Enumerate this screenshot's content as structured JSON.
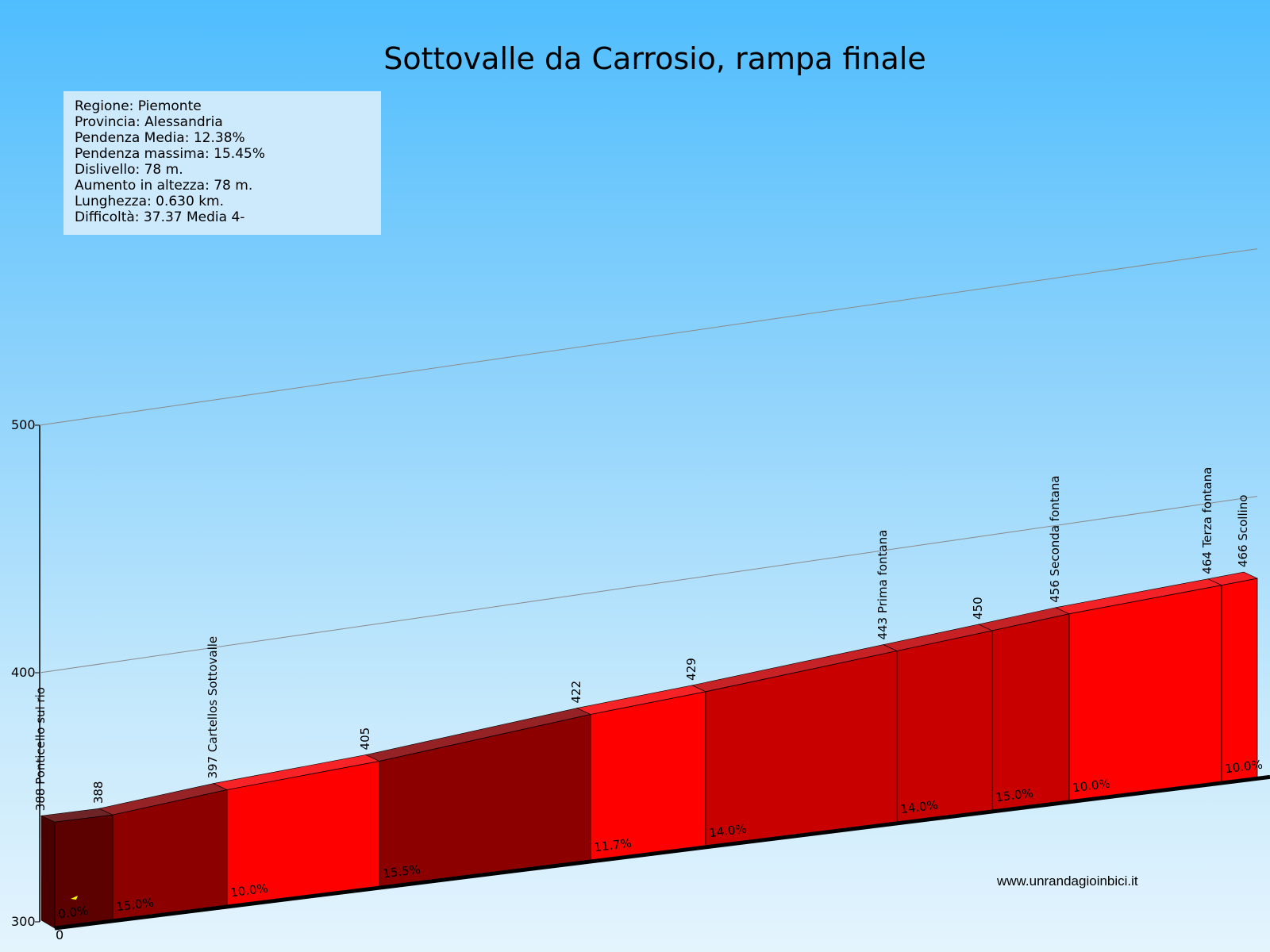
{
  "title": "Sottovalle da Carrosio, rampa finale",
  "info": [
    "Regione: Piemonte",
    "Provincia: Alessandria",
    "Pendenza Media: 12.38%",
    "Pendenza massima: 15.45%",
    "Dislivello:   78 m.",
    "Aumento in altezza:   78 m.",
    "Lunghezza:  0.630 km.",
    "Difficoltà: 37.37 Media 4-"
  ],
  "website": "www.unrandagioinbici.it",
  "chart_data": {
    "type": "area",
    "ylim": [
      300,
      500
    ],
    "yticks": [
      300,
      400,
      500
    ],
    "xtick_labels": [
      "0"
    ],
    "profile": [
      {
        "elevation": 388,
        "label": "388 Ponticello sul rio"
      },
      {
        "elevation": 388,
        "label": "388"
      },
      {
        "elevation": 397,
        "label": "397 Cartellos Sottovalle"
      },
      {
        "elevation": 405,
        "label": "405"
      },
      {
        "elevation": 422,
        "label": "422"
      },
      {
        "elevation": 429,
        "label": "429"
      },
      {
        "elevation": 443,
        "label": "443 Prima fontana"
      },
      {
        "elevation": 450,
        "label": "450"
      },
      {
        "elevation": 456,
        "label": "456 Seconda fontana"
      },
      {
        "elevation": 464,
        "label": "464 Terza fontana"
      },
      {
        "elevation": 466,
        "label": "466 Scollino"
      }
    ],
    "segments": [
      {
        "gradient": "0.0%",
        "color": "#5c0000"
      },
      {
        "gradient": "15.0%",
        "color": "#8c0000"
      },
      {
        "gradient": "10.0%",
        "color": "#ff0000"
      },
      {
        "gradient": "15.5%",
        "color": "#8c0000"
      },
      {
        "gradient": "11.7%",
        "color": "#ff0000"
      },
      {
        "gradient": "14.0%",
        "color": "#c80000"
      },
      {
        "gradient": "14.0%",
        "color": "#c80000"
      },
      {
        "gradient": "15.0%",
        "color": "#c80000"
      },
      {
        "gradient": "10.0%",
        "color": "#ff0000"
      },
      {
        "gradient": "10.0%",
        "color": "#ff0000"
      }
    ]
  }
}
